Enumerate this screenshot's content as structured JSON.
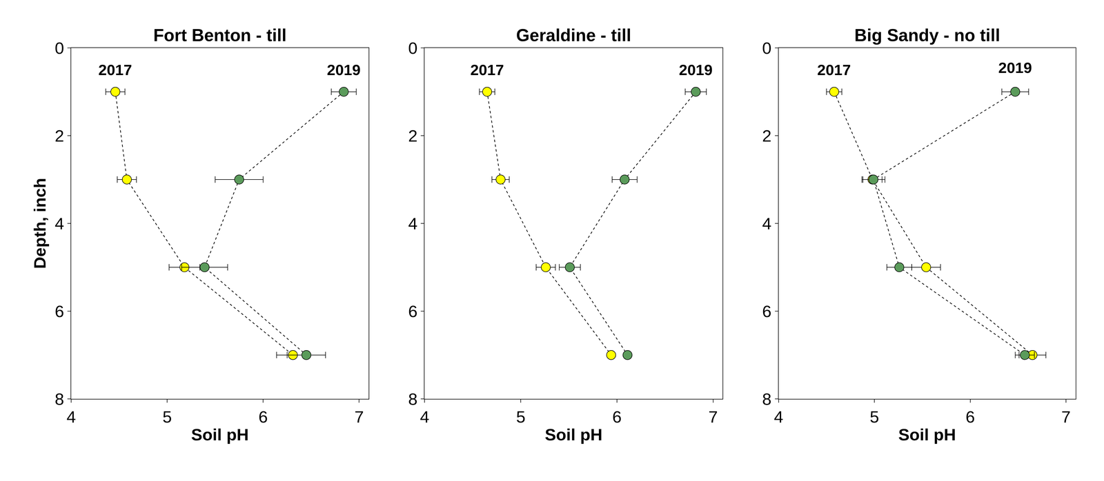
{
  "chart_data": [
    {
      "type": "line",
      "title": "Fort Benton - till",
      "x_label": "Soil pH",
      "y_label": "Depth, inch",
      "xlim": [
        4,
        7.1
      ],
      "xticks": [
        4,
        5,
        6,
        7
      ],
      "ylim": [
        8,
        0
      ],
      "yticks": [
        0,
        2,
        4,
        6,
        8
      ],
      "grid": false,
      "y": [
        1,
        3,
        5,
        7
      ],
      "series": [
        {
          "name": "2017",
          "color": "#ffff00",
          "marker": "circle",
          "line_style": "dash",
          "values": [
            4.46,
            4.58,
            5.18,
            6.31
          ],
          "errors": [
            0.1,
            0.1,
            0.16,
            0.17
          ],
          "label_x": 4.46,
          "label_y": 0.5
        },
        {
          "name": "2019",
          "color": "#5b9b5b",
          "marker": "circle",
          "line_style": "dash",
          "values": [
            6.84,
            5.75,
            5.39,
            6.45
          ],
          "errors": [
            0.13,
            0.25,
            0.24,
            0.2
          ],
          "label_x": 6.84,
          "label_y": 0.5
        }
      ]
    },
    {
      "type": "line",
      "title": "Geraldine - till",
      "x_label": "Soil pH",
      "xlim": [
        4,
        7.1
      ],
      "xticks": [
        4,
        5,
        6,
        7
      ],
      "ylim": [
        8,
        0
      ],
      "yticks": [
        0,
        2,
        4,
        6,
        8
      ],
      "grid": false,
      "y": [
        1,
        3,
        5,
        7
      ],
      "series": [
        {
          "name": "2017",
          "color": "#ffff00",
          "marker": "circle",
          "line_style": "dash",
          "values": [
            4.65,
            4.79,
            5.26,
            5.94
          ],
          "errors": [
            0.08,
            0.09,
            0.1,
            0.03
          ],
          "label_x": 4.65,
          "label_y": 0.5
        },
        {
          "name": "2019",
          "color": "#5b9b5b",
          "marker": "circle",
          "line_style": "dash",
          "values": [
            6.82,
            6.08,
            5.51,
            6.11
          ],
          "errors": [
            0.11,
            0.13,
            0.11,
            0.03
          ],
          "label_x": 6.82,
          "label_y": 0.5
        }
      ]
    },
    {
      "type": "line",
      "title": "Big Sandy - no till",
      "x_label": "Soil pH",
      "xlim": [
        4,
        7.1
      ],
      "xticks": [
        4,
        5,
        6,
        7
      ],
      "ylim": [
        8,
        0
      ],
      "yticks": [
        0,
        2,
        4,
        6,
        8
      ],
      "grid": false,
      "y": [
        1,
        3,
        5,
        7
      ],
      "series": [
        {
          "name": "2017",
          "color": "#ffff00",
          "marker": "circle",
          "line_style": "dash",
          "values": [
            4.58,
            4.98,
            5.54,
            6.65
          ],
          "errors": [
            0.08,
            0.1,
            0.15,
            0.14
          ],
          "label_x": 4.58,
          "label_y": 0.5
        },
        {
          "name": "2019",
          "color": "#5b9b5b",
          "marker": "circle",
          "line_style": "dash",
          "values": [
            6.47,
            4.99,
            5.26,
            6.57
          ],
          "errors": [
            0.14,
            0.12,
            0.13,
            0.1
          ],
          "label_x": 6.47,
          "label_y": 0.45
        }
      ]
    }
  ]
}
